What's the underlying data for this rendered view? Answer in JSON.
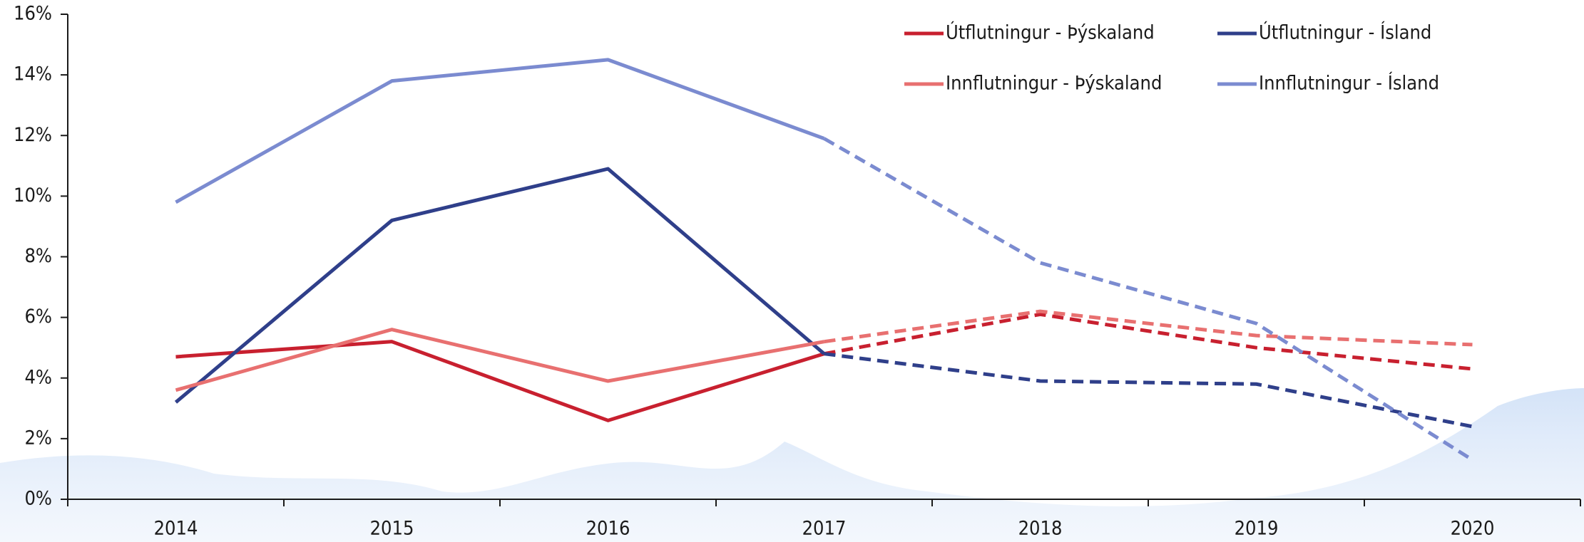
{
  "chart_data": {
    "type": "line",
    "categories": [
      "2014",
      "2015",
      "2016",
      "2017",
      "2018",
      "2019",
      "2020"
    ],
    "forecast_from": "2017",
    "series": [
      {
        "name": "Útflutningur - Þýskaland",
        "color": "#c8202f",
        "values": [
          4.7,
          5.2,
          2.6,
          4.8,
          6.1,
          5.0,
          4.3
        ]
      },
      {
        "name": "Útflutningur - Ísland",
        "color": "#2f3f8a",
        "values": [
          3.2,
          9.2,
          10.9,
          4.8,
          3.9,
          3.8,
          2.4
        ]
      },
      {
        "name": "Innflutningur - Þýskaland",
        "color": "#e87070",
        "values": [
          3.6,
          5.6,
          3.9,
          5.2,
          6.2,
          5.4,
          5.1
        ]
      },
      {
        "name": "Innflutningur - Ísland",
        "color": "#7b8bd0",
        "values": [
          9.8,
          13.8,
          14.5,
          11.9,
          7.8,
          5.8,
          1.3
        ]
      }
    ],
    "ylim": [
      0,
      16
    ],
    "yticks": [
      {
        "value": 0,
        "label": "0%"
      },
      {
        "value": 2,
        "label": "2%"
      },
      {
        "value": 4,
        "label": "4%"
      },
      {
        "value": 6,
        "label": "6%"
      },
      {
        "value": 8,
        "label": "8%"
      },
      {
        "value": 10,
        "label": "10%"
      },
      {
        "value": 12,
        "label": "12%"
      },
      {
        "value": 14,
        "label": "14%"
      },
      {
        "value": 16,
        "label": "16%"
      }
    ],
    "legend": "top-right"
  }
}
